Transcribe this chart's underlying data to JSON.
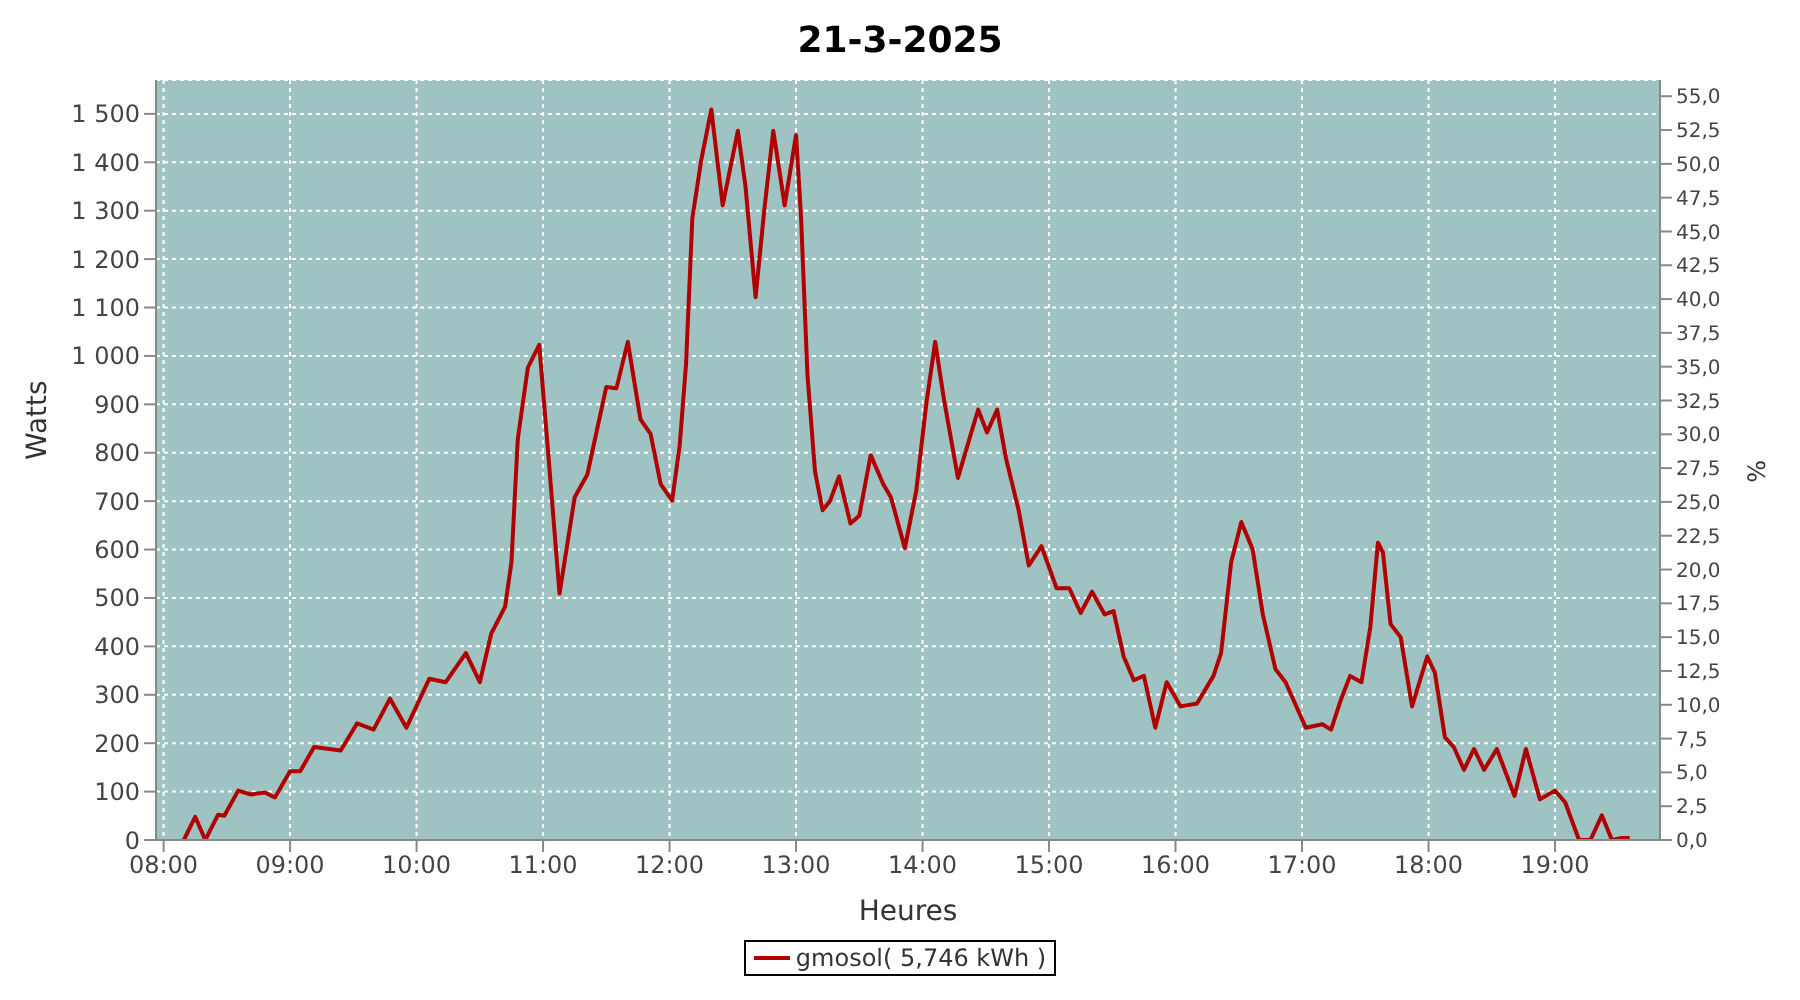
{
  "chart_data": {
    "type": "line",
    "title": "21-3-2025",
    "xlabel": "Heures",
    "ylabel": "Watts",
    "y2label": "%",
    "x": [
      8.16,
      8.25,
      8.33,
      8.43,
      8.48,
      8.59,
      8.69,
      8.8,
      8.88,
      9.0,
      9.08,
      9.19,
      9.4,
      9.53,
      9.66,
      9.79,
      9.92,
      10.1,
      10.23,
      10.39,
      10.5,
      10.59,
      10.7,
      10.75,
      10.8,
      10.88,
      10.97,
      11.04,
      11.13,
      11.25,
      11.35,
      11.5,
      11.58,
      11.67,
      11.77,
      11.85,
      11.93,
      12.02,
      12.08,
      12.13,
      12.18,
      12.25,
      12.33,
      12.42,
      12.54,
      12.6,
      12.68,
      12.75,
      12.82,
      12.91,
      13.0,
      13.04,
      13.09,
      13.15,
      13.21,
      13.27,
      13.34,
      13.43,
      13.5,
      13.59,
      13.69,
      13.75,
      13.86,
      13.95,
      14.03,
      14.1,
      14.17,
      14.28,
      14.37,
      14.44,
      14.51,
      14.59,
      14.66,
      14.76,
      14.84,
      14.94,
      15.06,
      15.16,
      15.25,
      15.34,
      15.44,
      15.51,
      15.59,
      15.67,
      15.75,
      15.84,
      15.93,
      16.04,
      16.17,
      16.3,
      16.36,
      16.44,
      16.52,
      16.61,
      16.69,
      16.79,
      16.87,
      17.03,
      17.16,
      17.23,
      17.31,
      17.38,
      17.47,
      17.54,
      17.6,
      17.64,
      17.7,
      17.78,
      17.87,
      17.99,
      18.05,
      18.13,
      18.2,
      18.28,
      18.36,
      18.44,
      18.54,
      18.68,
      18.77,
      18.88,
      19.0,
      19.08,
      19.19,
      19.28,
      19.37,
      19.45,
      19.53,
      19.59
    ],
    "series": [
      {
        "name": "gmosol( 5,746 kWh )",
        "color": "#b00000",
        "values": [
          0,
          48,
          0,
          52,
          50,
          102,
          94,
          98,
          88,
          142,
          142,
          192,
          185,
          241,
          228,
          292,
          232,
          333,
          326,
          386,
          326,
          426,
          482,
          574,
          828,
          976,
          1023,
          801,
          509,
          708,
          755,
          936,
          933,
          1029,
          869,
          839,
          735,
          701,
          815,
          982,
          1284,
          1404,
          1509,
          1311,
          1465,
          1351,
          1121,
          1304,
          1465,
          1311,
          1456,
          1284,
          962,
          761,
          681,
          701,
          751,
          654,
          670,
          795,
          735,
          708,
          603,
          721,
          902,
          1029,
          909,
          748,
          828,
          889,
          842,
          889,
          788,
          681,
          567,
          607,
          520,
          520,
          469,
          513,
          466,
          473,
          379,
          330,
          339,
          232,
          326,
          276,
          282,
          339,
          386,
          574,
          657,
          600,
          466,
          353,
          326,
          232,
          239,
          228,
          292,
          339,
          326,
          440,
          614,
          594,
          446,
          419,
          276,
          379,
          346,
          212,
          192,
          145,
          188,
          145,
          188,
          91,
          188,
          84,
          102,
          78,
          0,
          0,
          51,
          0,
          4,
          4
        ]
      }
    ],
    "xlim": [
      7.94,
      19.83
    ],
    "xticks": [
      {
        "value": 8,
        "label": "08:00"
      },
      {
        "value": 9,
        "label": "09:00"
      },
      {
        "value": 10,
        "label": "10:00"
      },
      {
        "value": 11,
        "label": "11:00"
      },
      {
        "value": 12,
        "label": "12:00"
      },
      {
        "value": 13,
        "label": "13:00"
      },
      {
        "value": 14,
        "label": "14:00"
      },
      {
        "value": 15,
        "label": "15:00"
      },
      {
        "value": 16,
        "label": "16:00"
      },
      {
        "value": 17,
        "label": "17:00"
      },
      {
        "value": 18,
        "label": "18:00"
      },
      {
        "value": 19,
        "label": "19:00"
      }
    ],
    "ylim": [
      0,
      1570
    ],
    "yticks": [
      0,
      100,
      200,
      300,
      400,
      500,
      600,
      700,
      800,
      900,
      {
        "value": 1000,
        "label": "1 000"
      },
      {
        "value": 1100,
        "label": "1 100"
      },
      {
        "value": 1200,
        "label": "1 200"
      },
      {
        "value": 1300,
        "label": "1 300"
      },
      {
        "value": 1400,
        "label": "1 400"
      },
      {
        "value": 1500,
        "label": "1 500"
      }
    ],
    "y2lim": [
      0,
      56.2
    ],
    "y2ticks": [
      {
        "value": 0,
        "label": "0,0"
      },
      {
        "value": 2.5,
        "label": "2,5"
      },
      {
        "value": 5,
        "label": "5,0"
      },
      {
        "value": 7.5,
        "label": "7,5"
      },
      {
        "value": 10,
        "label": "10,0"
      },
      {
        "value": 12.5,
        "label": "12,5"
      },
      {
        "value": 15,
        "label": "15,0"
      },
      {
        "value": 17.5,
        "label": "17,5"
      },
      {
        "value": 20,
        "label": "20,0"
      },
      {
        "value": 22.5,
        "label": "22,5"
      },
      {
        "value": 25,
        "label": "25,0"
      },
      {
        "value": 27.5,
        "label": "27,5"
      },
      {
        "value": 30,
        "label": "30,0"
      },
      {
        "value": 32.5,
        "label": "32,5"
      },
      {
        "value": 35,
        "label": "35,0"
      },
      {
        "value": 37.5,
        "label": "37,5"
      },
      {
        "value": 40,
        "label": "40,0"
      },
      {
        "value": 42.5,
        "label": "42,5"
      },
      {
        "value": 45,
        "label": "45,0"
      },
      {
        "value": 47.5,
        "label": "47,5"
      },
      {
        "value": 50,
        "label": "50,0"
      },
      {
        "value": 52.5,
        "label": "52,5"
      },
      {
        "value": 55,
        "label": "55,0"
      }
    ],
    "grid": true,
    "legend": "bottom",
    "marker": "none",
    "line_style": "solid"
  }
}
